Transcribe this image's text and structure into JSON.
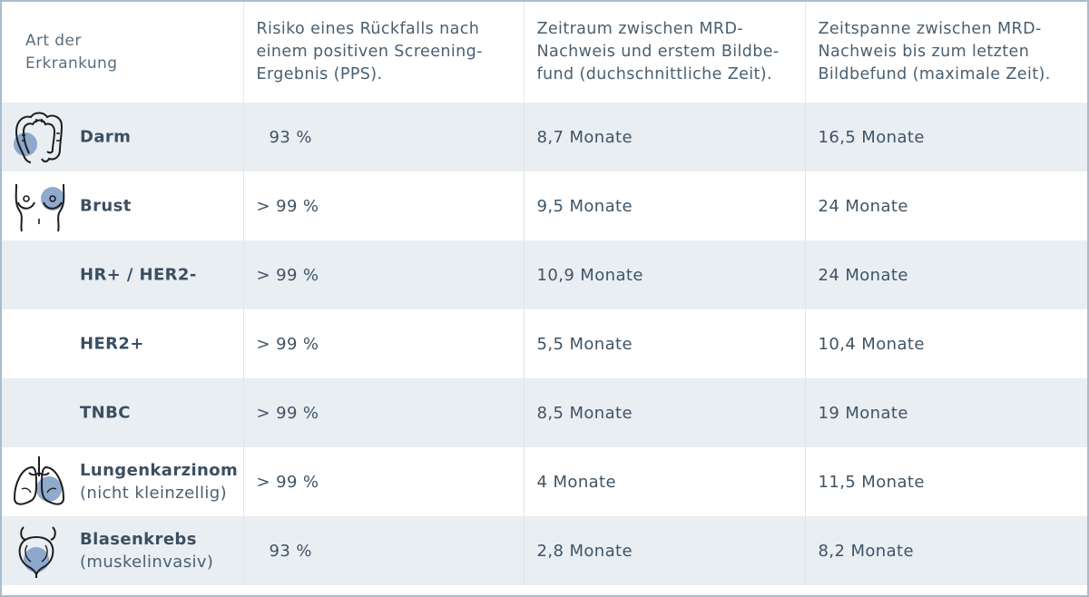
{
  "table": {
    "headers": [
      "Art der\nErkrankung",
      "Risiko eines Rückfalls nach einem positiven Screening-Ergebnis (PPS).",
      "Zeitraum zwischen MRD-Nachweis und erstem Bildbe-fund (duchschnittliche Zeit).",
      "Zeitspanne zwischen MRD-Nachweis bis zum letzten Bildbefund (maximale Zeit)."
    ],
    "header_lines": {
      "h0": [
        "Art der",
        "Erkrankung"
      ],
      "h1": [
        "Risiko eines Rückfalls nach",
        "einem positiven Screening-",
        "Ergebnis (PPS)."
      ],
      "h2": [
        "Zeitraum zwischen MRD-",
        "Nachweis und erstem Bildbe-",
        "fund (duchschnittliche Zeit)."
      ],
      "h3": [
        "Zeitspanne zwischen MRD-",
        "Nachweis bis zum letzten",
        "Bildbefund (maximale Zeit)."
      ]
    },
    "rows": [
      {
        "name": "Darm",
        "sub": "",
        "icon": "colon-icon",
        "pps": "93 %",
        "avg": "8,7 Monate",
        "max": "16,5 Monate"
      },
      {
        "name": "Brust",
        "sub": "",
        "icon": "breast-icon",
        "pps": "> 99 %",
        "avg": "9,5 Monate",
        "max": "24 Monate"
      },
      {
        "name": "HR+ / HER2-",
        "sub": "",
        "icon": "",
        "pps": "> 99 %",
        "avg": "10,9 Monate",
        "max": "24 Monate"
      },
      {
        "name": "HER2+",
        "sub": "",
        "icon": "",
        "pps": "> 99 %",
        "avg": "5,5 Monate",
        "max": "10,4 Monate"
      },
      {
        "name": "TNBC",
        "sub": "",
        "icon": "",
        "pps": "> 99 %",
        "avg": "8,5 Monate",
        "max": "19 Monate"
      },
      {
        "name": "Lungenkarzinom",
        "sub": "(nicht kleinzellig)",
        "icon": "lungs-icon",
        "pps": "> 99 %",
        "avg": "4 Monate",
        "max": "11,5 Monate"
      },
      {
        "name": "Blasenkrebs",
        "sub": "(muskelinvasiv)",
        "icon": "bladder-icon",
        "pps": "93 %",
        "avg": "2,8 Monate",
        "max": "8,2 Monate"
      }
    ]
  },
  "colors": {
    "border": "#a9bccb",
    "stripe": "#e9eef3",
    "text": "#3f5465",
    "accent": "#6f90bb"
  }
}
